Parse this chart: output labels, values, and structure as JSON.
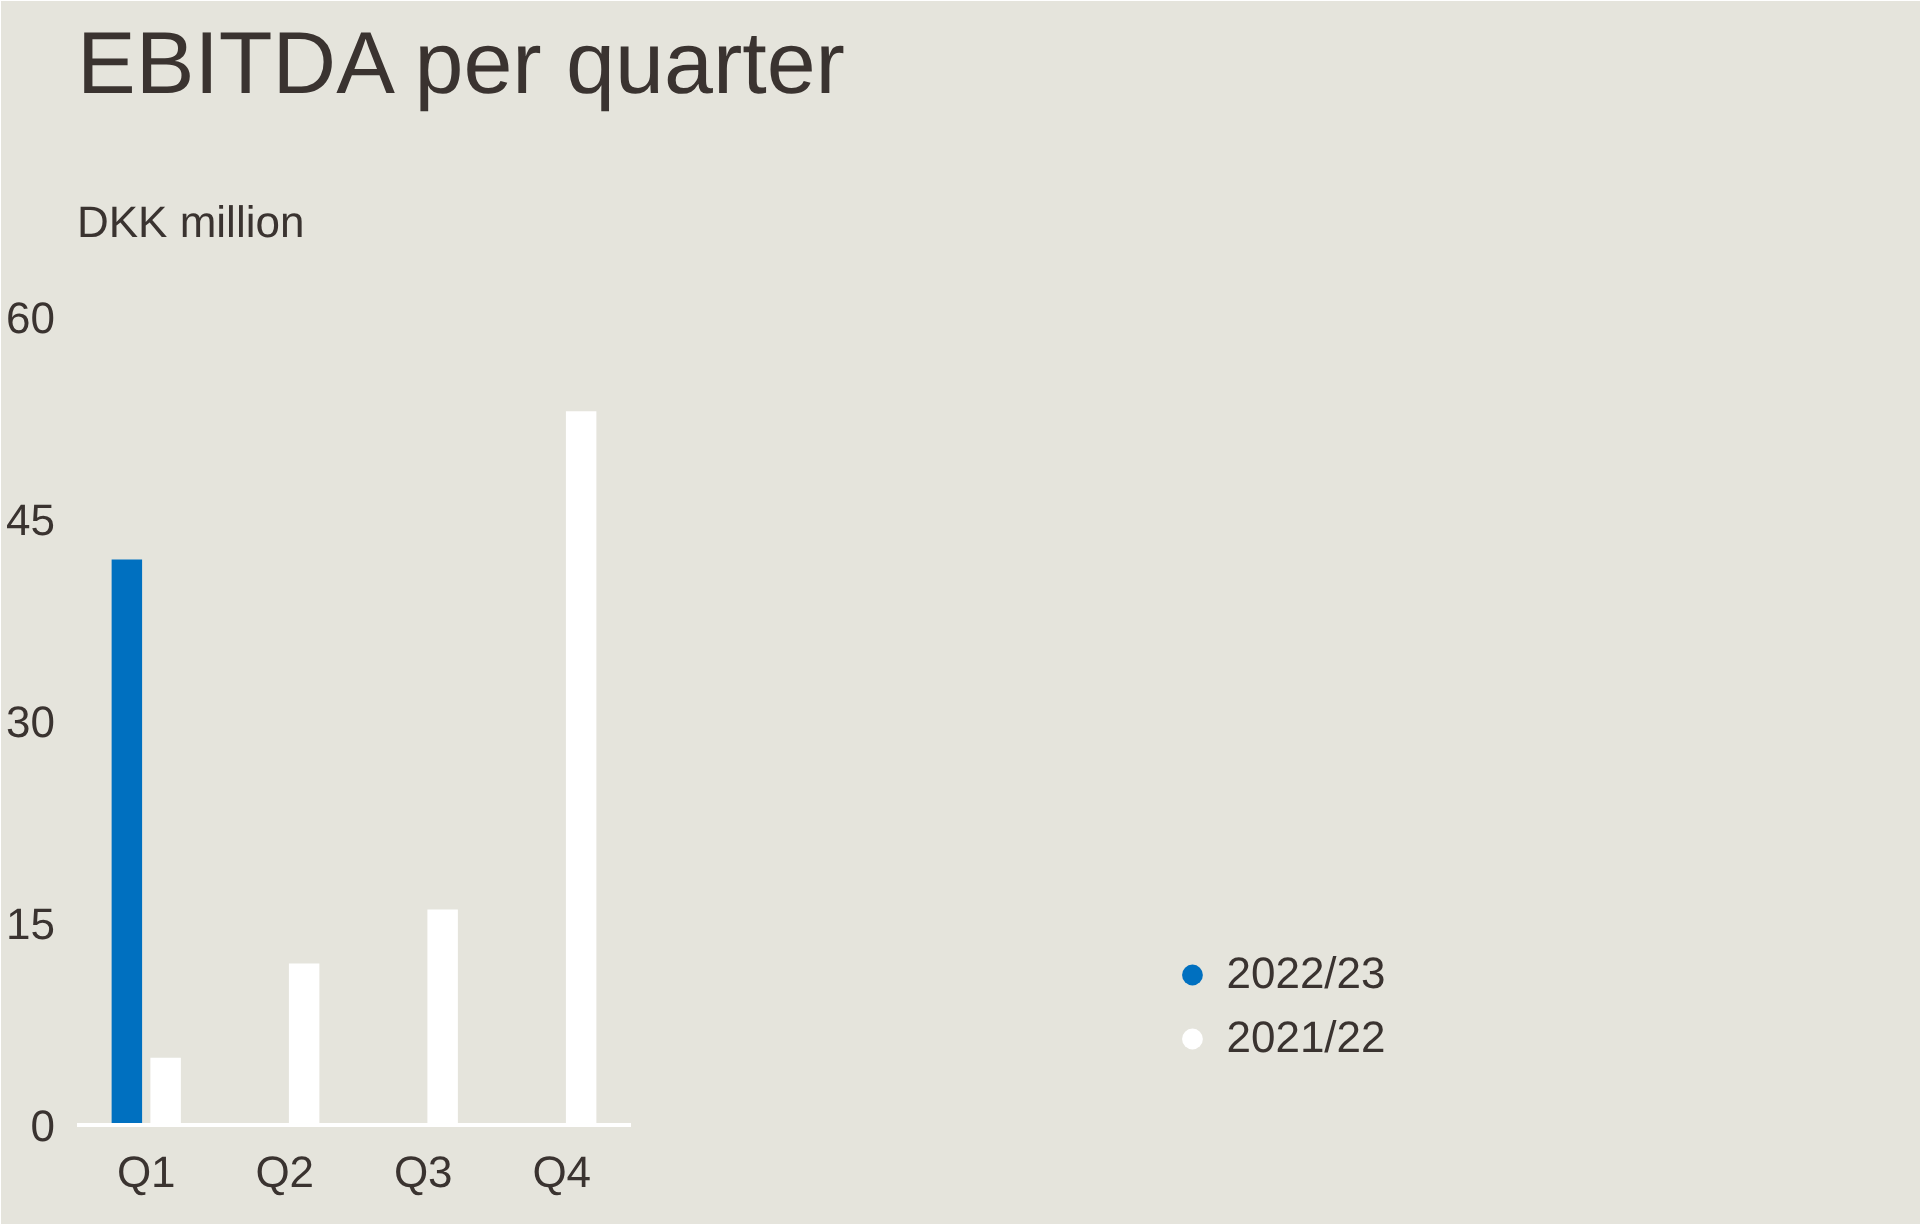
{
  "chart_data": {
    "type": "bar",
    "title": "EBITDA per quarter",
    "subtitle": "DKK million",
    "categories": [
      "Q1",
      "Q2",
      "Q3",
      "Q4"
    ],
    "series": [
      {
        "name": "2022/23",
        "color": "#0070c0",
        "values": [
          42,
          null,
          null,
          null
        ]
      },
      {
        "name": "2021/22",
        "color": "#ffffff",
        "values": [
          5,
          12,
          16,
          53
        ]
      }
    ],
    "ylim": [
      0,
      60
    ],
    "yticks": [
      0,
      15,
      30,
      45,
      60
    ],
    "grid": false,
    "legend": "bottom right"
  }
}
